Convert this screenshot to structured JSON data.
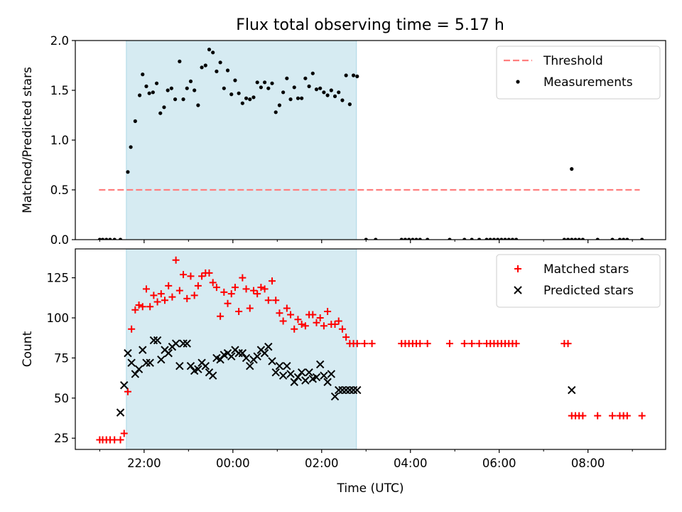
{
  "title": "Flux total observing time = 5.17 h",
  "chart_data": [
    {
      "type": "scatter",
      "ylabel": "Matched/Predicted stars",
      "xlim": [
        "2024-01-01T20:27",
        "2024-01-02T09:45"
      ],
      "ylim": [
        0,
        2.0
      ],
      "yticks": [
        0.0,
        0.5,
        1.0,
        1.5,
        2.0
      ],
      "ytick_labels": [
        "0.0",
        "0.5",
        "1.0",
        "1.5",
        "2.0"
      ],
      "xticks_minor": [
        "2024-01-01T21:00",
        "2024-01-01T23:00",
        "2024-01-02T01:00",
        "2024-01-02T03:00",
        "2024-01-02T05:00",
        "2024-01-02T07:00",
        "2024-01-02T09:00"
      ],
      "legend_position": "top-right",
      "shaded_span": [
        "2024-01-01T21:36",
        "2024-01-02T02:47"
      ],
      "shaded_color": "#add8e6",
      "threshold": {
        "name": "Threshold",
        "value": 0.5,
        "x_range": [
          "2024-01-01T20:59",
          "2024-01-02T09:10"
        ],
        "color": "#ff7f7f",
        "style": "dashed"
      },
      "series": [
        {
          "name": "Measurements",
          "color": "#000000",
          "marker": "dot",
          "x": [
            "2024-01-01T21:00",
            "2024-01-01T21:04",
            "2024-01-01T21:09",
            "2024-01-01T21:14",
            "2024-01-01T21:20",
            "2024-01-01T21:28",
            "2024-01-01T21:38",
            "2024-01-01T21:42",
            "2024-01-01T21:48",
            "2024-01-01T21:54",
            "2024-01-01T21:58",
            "2024-01-01T22:03",
            "2024-01-01T22:07",
            "2024-01-01T22:12",
            "2024-01-01T22:17",
            "2024-01-01T22:22",
            "2024-01-01T22:27",
            "2024-01-01T22:32",
            "2024-01-01T22:37",
            "2024-01-01T22:42",
            "2024-01-01T22:48",
            "2024-01-01T22:53",
            "2024-01-01T22:58",
            "2024-01-01T23:03",
            "2024-01-01T23:08",
            "2024-01-01T23:13",
            "2024-01-01T23:18",
            "2024-01-01T23:23",
            "2024-01-01T23:28",
            "2024-01-01T23:33",
            "2024-01-01T23:38",
            "2024-01-01T23:43",
            "2024-01-01T23:48",
            "2024-01-01T23:53",
            "2024-01-01T23:58",
            "2024-01-02T00:03",
            "2024-01-02T00:08",
            "2024-01-02T00:13",
            "2024-01-02T00:18",
            "2024-01-02T00:23",
            "2024-01-02T00:28",
            "2024-01-02T00:33",
            "2024-01-02T00:38",
            "2024-01-02T00:43",
            "2024-01-02T00:48",
            "2024-01-02T00:53",
            "2024-01-02T00:58",
            "2024-01-02T01:03",
            "2024-01-02T01:08",
            "2024-01-02T01:13",
            "2024-01-02T01:18",
            "2024-01-02T01:23",
            "2024-01-02T01:28",
            "2024-01-02T01:33",
            "2024-01-02T01:38",
            "2024-01-02T01:43",
            "2024-01-02T01:48",
            "2024-01-02T01:53",
            "2024-01-02T01:58",
            "2024-01-02T02:03",
            "2024-01-02T02:08",
            "2024-01-02T02:13",
            "2024-01-02T02:18",
            "2024-01-02T02:23",
            "2024-01-02T02:28",
            "2024-01-02T02:33",
            "2024-01-02T02:38",
            "2024-01-02T02:43",
            "2024-01-02T02:48",
            "2024-01-02T03:00",
            "2024-01-02T03:13",
            "2024-01-02T03:48",
            "2024-01-02T03:53",
            "2024-01-02T03:58",
            "2024-01-02T04:03",
            "2024-01-02T04:08",
            "2024-01-02T04:13",
            "2024-01-02T04:23",
            "2024-01-02T04:53",
            "2024-01-02T05:13",
            "2024-01-02T05:23",
            "2024-01-02T05:33",
            "2024-01-02T05:43",
            "2024-01-02T05:48",
            "2024-01-02T05:53",
            "2024-01-02T05:58",
            "2024-01-02T06:03",
            "2024-01-02T06:08",
            "2024-01-02T06:13",
            "2024-01-02T06:18",
            "2024-01-02T06:23",
            "2024-01-02T07:28",
            "2024-01-02T07:33",
            "2024-01-02T07:38",
            "2024-01-02T07:38",
            "2024-01-02T07:43",
            "2024-01-02T07:48",
            "2024-01-02T07:53",
            "2024-01-02T08:13",
            "2024-01-02T08:33",
            "2024-01-02T08:43",
            "2024-01-02T08:48",
            "2024-01-02T08:53",
            "2024-01-02T09:13"
          ],
          "y": [
            0,
            0,
            0,
            0,
            0,
            0,
            0.68,
            0.93,
            1.19,
            1.45,
            1.66,
            1.54,
            1.47,
            1.48,
            1.57,
            1.27,
            1.33,
            1.5,
            1.52,
            1.41,
            1.79,
            1.41,
            1.52,
            1.59,
            1.5,
            1.35,
            1.73,
            1.75,
            1.91,
            1.88,
            1.69,
            1.78,
            1.52,
            1.7,
            1.46,
            1.6,
            1.47,
            1.37,
            1.42,
            1.41,
            1.43,
            1.58,
            1.53,
            1.58,
            1.52,
            1.57,
            1.28,
            1.35,
            1.48,
            1.62,
            1.41,
            1.53,
            1.42,
            1.42,
            1.62,
            1.54,
            1.67,
            1.51,
            1.52,
            1.48,
            1.45,
            1.5,
            1.44,
            1.48,
            1.4,
            1.65,
            1.36,
            1.65,
            1.64,
            0,
            0,
            0,
            0,
            0,
            0,
            0,
            0,
            0,
            0,
            0,
            0,
            0,
            0,
            0,
            0,
            0,
            0,
            0,
            0,
            0,
            0,
            0,
            0,
            0,
            0.71,
            0,
            0,
            0,
            0,
            0,
            0,
            0,
            0,
            0
          ]
        }
      ]
    },
    {
      "type": "scatter",
      "ylabel": "Count",
      "xlabel": "Time (UTC)",
      "xlim": [
        "2024-01-01T20:27",
        "2024-01-02T09:45"
      ],
      "ylim": [
        18,
        143
      ],
      "yticks": [
        25,
        50,
        75,
        100,
        125
      ],
      "ytick_labels": [
        "25",
        "50",
        "75",
        "100",
        "125"
      ],
      "xticks": [
        "2024-01-01T22:00",
        "2024-01-02T00:00",
        "2024-01-02T02:00",
        "2024-01-02T04:00",
        "2024-01-02T06:00",
        "2024-01-02T08:00"
      ],
      "xtick_labels": [
        "22:00",
        "00:00",
        "02:00",
        "04:00",
        "06:00",
        "08:00"
      ],
      "xticks_minor": [
        "2024-01-01T21:00",
        "2024-01-01T23:00",
        "2024-01-02T01:00",
        "2024-01-02T03:00",
        "2024-01-02T05:00",
        "2024-01-02T07:00",
        "2024-01-02T09:00"
      ],
      "legend_position": "top-right",
      "shaded_span": [
        "2024-01-01T21:36",
        "2024-01-02T02:47"
      ],
      "shaded_color": "#add8e6",
      "series": [
        {
          "name": "Matched stars",
          "color": "#ff0000",
          "marker": "plus",
          "x": [
            "2024-01-01T21:00",
            "2024-01-01T21:04",
            "2024-01-01T21:09",
            "2024-01-01T21:14",
            "2024-01-01T21:20",
            "2024-01-01T21:28",
            "2024-01-01T21:33",
            "2024-01-01T21:38",
            "2024-01-01T21:43",
            "2024-01-01T21:48",
            "2024-01-01T21:53",
            "2024-01-01T21:58",
            "2024-01-01T22:03",
            "2024-01-01T22:08",
            "2024-01-01T22:13",
            "2024-01-01T22:18",
            "2024-01-01T22:23",
            "2024-01-01T22:28",
            "2024-01-01T22:33",
            "2024-01-01T22:38",
            "2024-01-01T22:43",
            "2024-01-01T22:48",
            "2024-01-01T22:53",
            "2024-01-01T22:58",
            "2024-01-01T23:03",
            "2024-01-01T23:08",
            "2024-01-01T23:13",
            "2024-01-01T23:18",
            "2024-01-01T23:23",
            "2024-01-01T23:28",
            "2024-01-01T23:33",
            "2024-01-01T23:38",
            "2024-01-01T23:43",
            "2024-01-01T23:48",
            "2024-01-01T23:53",
            "2024-01-01T23:58",
            "2024-01-02T00:03",
            "2024-01-02T00:08",
            "2024-01-02T00:13",
            "2024-01-02T00:18",
            "2024-01-02T00:23",
            "2024-01-02T00:28",
            "2024-01-02T00:33",
            "2024-01-02T00:38",
            "2024-01-02T00:43",
            "2024-01-02T00:48",
            "2024-01-02T00:53",
            "2024-01-02T00:58",
            "2024-01-02T01:03",
            "2024-01-02T01:08",
            "2024-01-02T01:13",
            "2024-01-02T01:18",
            "2024-01-02T01:23",
            "2024-01-02T01:28",
            "2024-01-02T01:33",
            "2024-01-02T01:38",
            "2024-01-02T01:43",
            "2024-01-02T01:48",
            "2024-01-02T01:53",
            "2024-01-02T01:58",
            "2024-01-02T02:03",
            "2024-01-02T02:08",
            "2024-01-02T02:13",
            "2024-01-02T02:18",
            "2024-01-02T02:23",
            "2024-01-02T02:28",
            "2024-01-02T02:33",
            "2024-01-02T02:38",
            "2024-01-02T02:43",
            "2024-01-02T02:48",
            "2024-01-02T02:58",
            "2024-01-02T03:08",
            "2024-01-02T03:48",
            "2024-01-02T03:53",
            "2024-01-02T03:58",
            "2024-01-02T04:03",
            "2024-01-02T04:08",
            "2024-01-02T04:13",
            "2024-01-02T04:23",
            "2024-01-02T04:53",
            "2024-01-02T05:13",
            "2024-01-02T05:23",
            "2024-01-02T05:33",
            "2024-01-02T05:43",
            "2024-01-02T05:48",
            "2024-01-02T05:53",
            "2024-01-02T05:58",
            "2024-01-02T06:03",
            "2024-01-02T06:08",
            "2024-01-02T06:13",
            "2024-01-02T06:18",
            "2024-01-02T06:23",
            "2024-01-02T07:28",
            "2024-01-02T07:33",
            "2024-01-02T07:38",
            "2024-01-02T07:43",
            "2024-01-02T07:48",
            "2024-01-02T07:53",
            "2024-01-02T08:13",
            "2024-01-02T08:33",
            "2024-01-02T08:43",
            "2024-01-02T08:48",
            "2024-01-02T08:53",
            "2024-01-02T09:13"
          ],
          "y": [
            24,
            24,
            24,
            24,
            24,
            24,
            28,
            54,
            93,
            105,
            108,
            107,
            118,
            107,
            114,
            110,
            115,
            111,
            120,
            113,
            136,
            117,
            127,
            112,
            126,
            114,
            120,
            126,
            128,
            128,
            122,
            119,
            101,
            116,
            109,
            115,
            119,
            104,
            125,
            118,
            106,
            117,
            115,
            119,
            118,
            111,
            123,
            111,
            103,
            98,
            106,
            102,
            93,
            99,
            96,
            95,
            102,
            102,
            97,
            100,
            95,
            104,
            96,
            96,
            98,
            93,
            88,
            84,
            84,
            84,
            84,
            84,
            84,
            84,
            84,
            84,
            84,
            84,
            84,
            84,
            84,
            84,
            84,
            84,
            84,
            84,
            84,
            84,
            84,
            84,
            84,
            84,
            84,
            84,
            39,
            39,
            39,
            39,
            39,
            39,
            39,
            39,
            39,
            39
          ]
        },
        {
          "name": "Predicted stars",
          "color": "#000000",
          "marker": "x",
          "x": [
            "2024-01-01T21:28",
            "2024-01-01T21:33",
            "2024-01-01T21:38",
            "2024-01-01T21:43",
            "2024-01-01T21:48",
            "2024-01-01T21:53",
            "2024-01-01T21:58",
            "2024-01-01T22:03",
            "2024-01-01T22:08",
            "2024-01-01T22:13",
            "2024-01-01T22:18",
            "2024-01-01T22:23",
            "2024-01-01T22:28",
            "2024-01-01T22:33",
            "2024-01-01T22:38",
            "2024-01-01T22:43",
            "2024-01-01T22:48",
            "2024-01-01T22:53",
            "2024-01-01T22:58",
            "2024-01-01T23:03",
            "2024-01-01T23:08",
            "2024-01-01T23:13",
            "2024-01-01T23:18",
            "2024-01-01T23:23",
            "2024-01-01T23:28",
            "2024-01-01T23:33",
            "2024-01-01T23:38",
            "2024-01-01T23:43",
            "2024-01-01T23:48",
            "2024-01-01T23:53",
            "2024-01-01T23:58",
            "2024-01-02T00:03",
            "2024-01-02T00:08",
            "2024-01-02T00:13",
            "2024-01-02T00:18",
            "2024-01-02T00:23",
            "2024-01-02T00:28",
            "2024-01-02T00:33",
            "2024-01-02T00:38",
            "2024-01-02T00:43",
            "2024-01-02T00:48",
            "2024-01-02T00:53",
            "2024-01-02T00:58",
            "2024-01-02T01:03",
            "2024-01-02T01:08",
            "2024-01-02T01:13",
            "2024-01-02T01:18",
            "2024-01-02T01:23",
            "2024-01-02T01:28",
            "2024-01-02T01:33",
            "2024-01-02T01:38",
            "2024-01-02T01:43",
            "2024-01-02T01:48",
            "2024-01-02T01:53",
            "2024-01-02T01:58",
            "2024-01-02T02:03",
            "2024-01-02T02:08",
            "2024-01-02T02:13",
            "2024-01-02T02:18",
            "2024-01-02T02:23",
            "2024-01-02T02:28",
            "2024-01-02T02:33",
            "2024-01-02T02:38",
            "2024-01-02T02:43",
            "2024-01-02T02:48",
            "2024-01-02T07:38"
          ],
          "y": [
            41,
            58,
            78,
            72,
            65,
            68,
            80,
            72,
            72,
            86,
            86,
            74,
            80,
            78,
            82,
            84,
            70,
            84,
            84,
            70,
            67,
            68,
            72,
            70,
            66,
            64,
            75,
            74,
            77,
            78,
            76,
            80,
            78,
            78,
            75,
            70,
            74,
            76,
            80,
            78,
            82,
            73,
            66,
            70,
            64,
            70,
            65,
            60,
            63,
            66,
            61,
            66,
            62,
            63,
            71,
            64,
            60,
            65,
            51,
            55,
            55,
            55,
            55,
            55,
            55,
            55
          ]
        }
      ]
    }
  ]
}
